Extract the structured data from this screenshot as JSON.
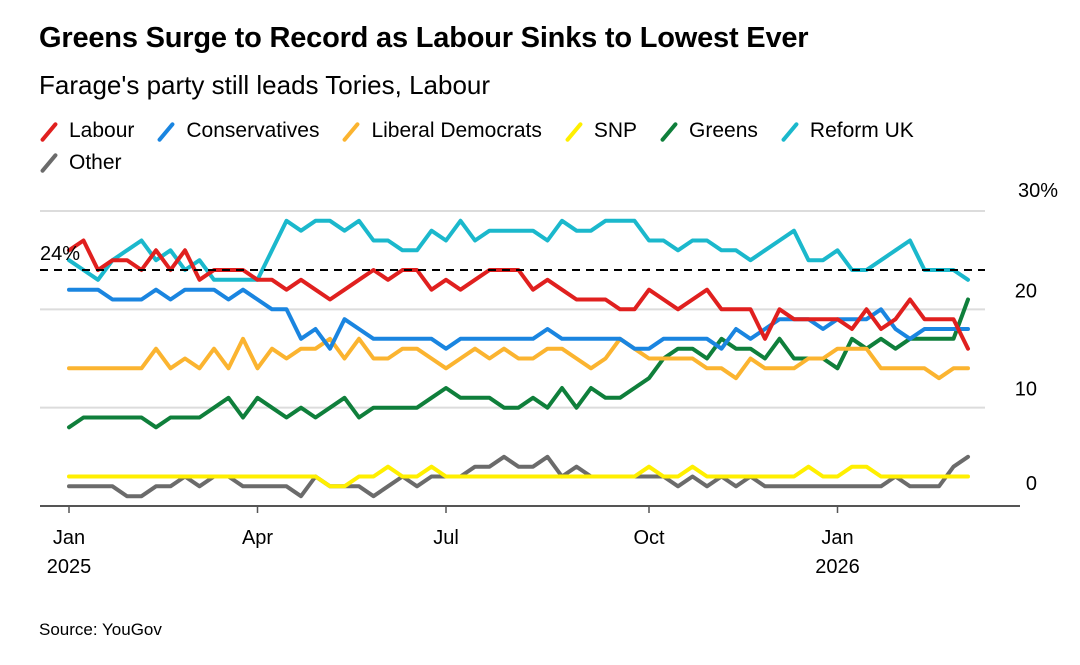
{
  "title": "Greens Surge to Record as Labour Sinks to Lowest Ever",
  "subtitle": "Farage's party still leads Tories, Labour",
  "source": "Source: YouGov",
  "chart_data": {
    "type": "line",
    "title": "Greens Surge to Record as Labour Sinks to Lowest Ever",
    "subtitle": "Farage's party still leads Tories, Labour",
    "xlabel": "",
    "ylabel": "",
    "ylim": [
      0,
      30
    ],
    "y_ticks": [
      {
        "value": 30,
        "label": "30%"
      },
      {
        "value": 20,
        "label": "20"
      },
      {
        "value": 10,
        "label": "10"
      },
      {
        "value": 0,
        "label": "0"
      }
    ],
    "x_ticks": [
      {
        "week": 0,
        "label": "Jan",
        "sublabel": "2025"
      },
      {
        "week": 13,
        "label": "Apr",
        "sublabel": ""
      },
      {
        "week": 26,
        "label": "Jul",
        "sublabel": ""
      },
      {
        "week": 40,
        "label": "Oct",
        "sublabel": ""
      },
      {
        "week": 53,
        "label": "Jan",
        "sublabel": "2026"
      }
    ],
    "x_unit": "weeks since Jan 2025",
    "n_points": 63,
    "grid": true,
    "legend_position": "top-left",
    "reference_line": {
      "value": 24,
      "label": "24%",
      "style": "dashed"
    },
    "series": [
      {
        "name": "Labour",
        "color": "#e0201f",
        "values": [
          26,
          27,
          24,
          25,
          25,
          24,
          26,
          24,
          26,
          23,
          24,
          24,
          24,
          23,
          23,
          22,
          23,
          22,
          21,
          22,
          23,
          24,
          23,
          24,
          24,
          22,
          23,
          22,
          23,
          24,
          24,
          24,
          22,
          23,
          22,
          21,
          21,
          21,
          20,
          20,
          22,
          21,
          20,
          21,
          22,
          20,
          20,
          20,
          17,
          20,
          19,
          19,
          19,
          19,
          18,
          20,
          18,
          19,
          21,
          19,
          19,
          19,
          16
        ]
      },
      {
        "name": "Conservatives",
        "color": "#1a85e0",
        "values": [
          22,
          22,
          22,
          21,
          21,
          21,
          22,
          21,
          22,
          22,
          22,
          21,
          22,
          21,
          20,
          20,
          17,
          18,
          16,
          19,
          18,
          17,
          17,
          17,
          17,
          17,
          16,
          17,
          17,
          17,
          17,
          17,
          17,
          18,
          17,
          17,
          17,
          17,
          17,
          16,
          16,
          17,
          17,
          17,
          17,
          16,
          18,
          17,
          18,
          19,
          19,
          19,
          18,
          19,
          19,
          19,
          20,
          18,
          17,
          18,
          18,
          18,
          18
        ]
      },
      {
        "name": "Liberal Democrats",
        "color": "#fbb430",
        "values": [
          14,
          14,
          14,
          14,
          14,
          14,
          16,
          14,
          15,
          14,
          16,
          14,
          17,
          14,
          16,
          15,
          16,
          16,
          17,
          15,
          17,
          15,
          15,
          16,
          16,
          15,
          14,
          15,
          16,
          15,
          16,
          15,
          15,
          16,
          16,
          15,
          14,
          15,
          17,
          16,
          15,
          15,
          15,
          15,
          14,
          14,
          13,
          15,
          14,
          14,
          14,
          15,
          15,
          16,
          16,
          16,
          14,
          14,
          14,
          14,
          13,
          14,
          14
        ]
      },
      {
        "name": "SNP",
        "color": "#ffef00",
        "values": [
          3,
          3,
          3,
          3,
          3,
          3,
          3,
          3,
          3,
          3,
          3,
          3,
          3,
          3,
          3,
          3,
          3,
          3,
          2,
          2,
          3,
          3,
          4,
          3,
          3,
          4,
          3,
          3,
          3,
          3,
          3,
          3,
          3,
          3,
          3,
          3,
          3,
          3,
          3,
          3,
          4,
          3,
          3,
          4,
          3,
          3,
          3,
          3,
          3,
          3,
          3,
          4,
          3,
          3,
          4,
          4,
          3,
          3,
          3,
          3,
          3,
          3,
          3
        ]
      },
      {
        "name": "Greens",
        "color": "#0f7f3b",
        "values": [
          8,
          9,
          9,
          9,
          9,
          9,
          8,
          9,
          9,
          9,
          10,
          11,
          9,
          11,
          10,
          9,
          10,
          9,
          10,
          11,
          9,
          10,
          10,
          10,
          10,
          11,
          12,
          11,
          11,
          11,
          10,
          10,
          11,
          10,
          12,
          10,
          12,
          11,
          11,
          12,
          13,
          15,
          16,
          16,
          15,
          17,
          16,
          16,
          15,
          17,
          15,
          15,
          15,
          14,
          17,
          16,
          17,
          16,
          17,
          17,
          17,
          17,
          21
        ]
      },
      {
        "name": "Reform UK",
        "color": "#1bb8cc",
        "values": [
          25,
          24,
          23,
          25,
          26,
          27,
          25,
          26,
          24,
          25,
          23,
          23,
          23,
          23,
          26,
          29,
          28,
          29,
          29,
          28,
          29,
          27,
          27,
          26,
          26,
          28,
          27,
          29,
          27,
          28,
          28,
          28,
          28,
          27,
          29,
          28,
          28,
          29,
          29,
          29,
          27,
          27,
          26,
          27,
          27,
          26,
          26,
          25,
          26,
          27,
          28,
          25,
          25,
          26,
          24,
          24,
          25,
          26,
          27,
          24,
          24,
          24,
          23
        ]
      },
      {
        "name": "Other",
        "color": "#6b6b6b",
        "values": [
          2,
          2,
          2,
          2,
          1,
          1,
          2,
          2,
          3,
          2,
          3,
          3,
          2,
          2,
          2,
          2,
          1,
          3,
          2,
          2,
          2,
          1,
          2,
          3,
          2,
          3,
          3,
          3,
          4,
          4,
          5,
          4,
          4,
          5,
          3,
          4,
          3,
          3,
          3,
          3,
          3,
          3,
          2,
          3,
          2,
          3,
          2,
          3,
          2,
          2,
          2,
          2,
          2,
          2,
          2,
          2,
          2,
          3,
          2,
          2,
          2,
          4,
          5
        ]
      }
    ]
  }
}
